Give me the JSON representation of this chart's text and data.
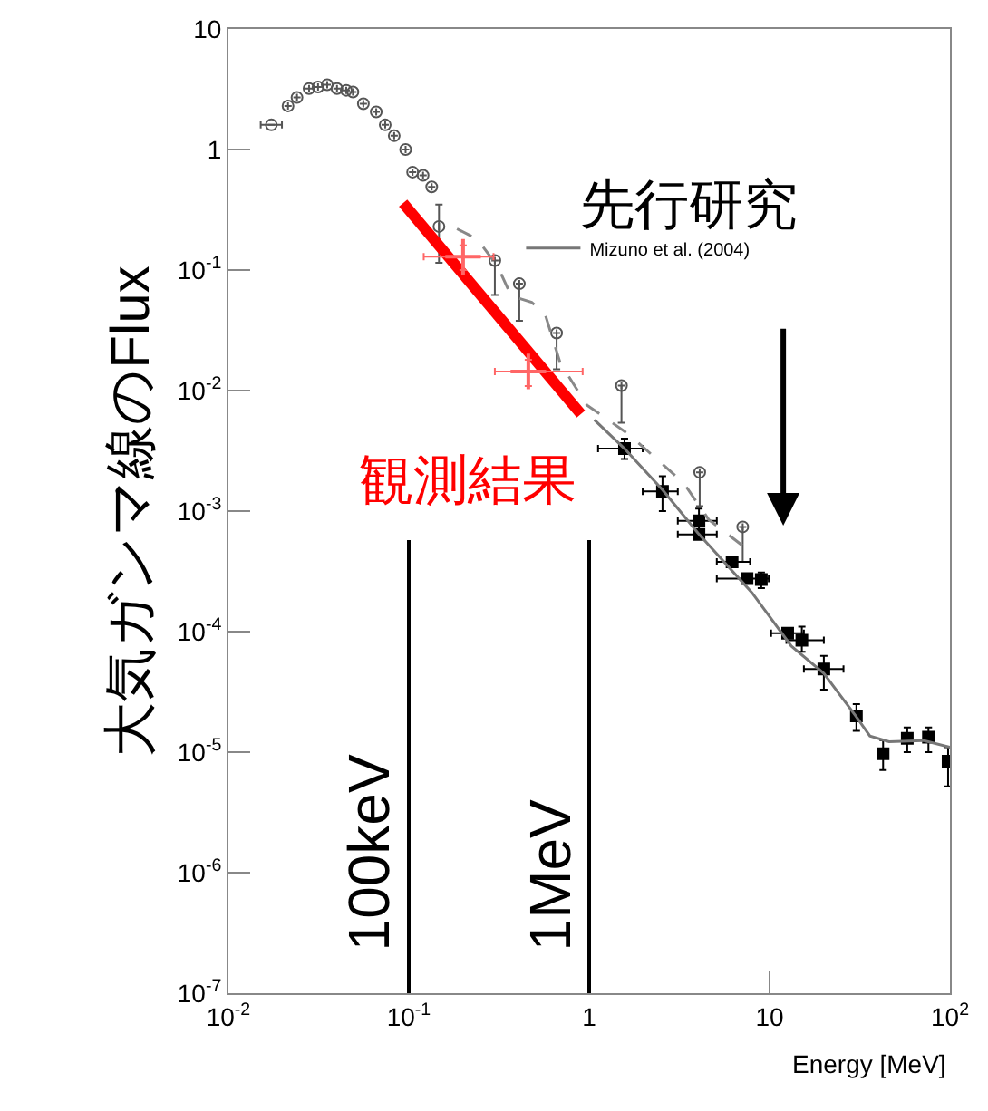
{
  "chart_data": {
    "type": "scatter",
    "xlabel": "Energy [MeV]",
    "ylabel": "大気ガンマ線のFlux",
    "log": "xy",
    "legend": "top right",
    "xlim": [
      0.01,
      100
    ],
    "ylim": [
      1e-07,
      10
    ],
    "xticks": [
      {
        "value": 0.01,
        "label": "10$^{-2}$"
      },
      {
        "value": 0.1,
        "label": "10$^{-1}$"
      },
      1,
      10,
      {
        "value": 100,
        "label": "10$^{2}$"
      }
    ],
    "yticks": [
      {
        "value": 1e-07,
        "label": "10$^{-7}$"
      },
      {
        "value": 1e-06,
        "label": "10$^{-6}$"
      },
      {
        "value": 1e-05,
        "label": "10$^{-5}$"
      },
      {
        "value": 0.0001,
        "label": "10$^{-4}$"
      },
      {
        "value": 0.001,
        "label": "10$^{-3}$"
      },
      {
        "value": 0.01,
        "label": "10$^{-2}$"
      },
      {
        "value": 0.1,
        "label": "10$^{-1}$"
      },
      1,
      10
    ],
    "annotations": [
      "先行研究"
    ],
    "ref_lines": [
      {
        "axis": "x",
        "value": 0.1,
        "label": "100keV",
        "color": "#000000"
      },
      {
        "axis": "x",
        "value": 1,
        "label": "1MeV",
        "color": "#000000"
      }
    ],
    "series": [
      {
        "marker": "circle",
        "color": "#555555",
        "x": [
          0.0173,
          0.0214,
          0.024,
          0.028,
          0.0314,
          0.0353,
          0.04,
          0.045,
          0.049,
          0.056,
          0.066,
          0.074,
          0.083,
          0.096,
          0.105,
          0.12,
          0.134,
          0.147,
          0.3,
          0.41,
          0.66,
          1.51,
          4.1,
          7.1
        ],
        "values": [
          1.6,
          2.3,
          2.7,
          3.2,
          3.3,
          3.45,
          3.2,
          3.1,
          3.0,
          2.4,
          2.05,
          1.6,
          1.3,
          1.0,
          0.65,
          0.61,
          0.49,
          0.23,
          0.12,
          0.077,
          0.03,
          0.011,
          0.0021,
          0.00074
        ],
        "errors": [
          null,
          null,
          null,
          null,
          null,
          null,
          null,
          null,
          null,
          null,
          null,
          null,
          null,
          null,
          null,
          null,
          null,
          [
            0.115,
            0.35
          ],
          [
            0.062,
            0.12
          ],
          [
            0.038,
            0.077
          ],
          [
            0.015,
            0.03
          ],
          [
            0.0054,
            0.011
          ],
          [
            0.0011,
            0.0021
          ],
          [
            0.00038,
            0.00074
          ]
        ],
        "xerrors": [
          [
            0.0151,
            0.0198
          ],
          null,
          null,
          null,
          null,
          null,
          null,
          null,
          null,
          null,
          null,
          null,
          null,
          null,
          null,
          null,
          null,
          null,
          null,
          null,
          null,
          null,
          null,
          null
        ]
      },
      {
        "marker": "square",
        "color": "#000000",
        "x": [
          1.57,
          2.55,
          4.06,
          4.06,
          6.2,
          7.5,
          9.0,
          12.6,
          15.1,
          20,
          30.3,
          42.6,
          58,
          76,
          97.7
        ],
        "values": [
          0.0033,
          0.00146,
          0.00083,
          0.00064,
          0.00038,
          0.000275,
          0.00027,
          9.7e-05,
          8.5e-05,
          4.9e-05,
          2e-05,
          9.7e-06,
          1.3e-05,
          1.33e-05,
          8.4e-06
        ],
        "errors": [
          [
            0.0027,
            0.004
          ],
          [
            0.001,
            0.00195
          ],
          [
            0.00065,
            0.00105
          ],
          null,
          null,
          null,
          [
            0.00023,
            0.00031
          ],
          null,
          [
            6.8e-05,
            0.00011
          ],
          [
            3.3e-05,
            6.3e-05
          ],
          [
            1.5e-05,
            2.5e-05
          ],
          [
            7.1e-06,
            1.26e-05
          ],
          [
            1e-05,
            1.6e-05
          ],
          [
            1e-05,
            1.6e-05
          ],
          [
            5.2e-06,
            1.1e-05
          ]
        ],
        "xerrors": [
          [
            1.12,
            1.98
          ],
          [
            1.98,
            3.1
          ],
          [
            3.1,
            5.1
          ],
          [
            3.1,
            5.1
          ],
          [
            5.1,
            7.8
          ],
          [
            5.1,
            9.9
          ],
          null,
          [
            10.2,
            15.5
          ],
          [
            12.4,
            20
          ],
          [
            15.5,
            25.7
          ],
          null,
          null,
          null,
          null,
          null
        ]
      },
      {
        "type": "line",
        "name": "Mizuno et al. (2004)",
        "marker": "none",
        "line_style": "solid",
        "color": "#777777",
        "x": [
          1.07,
          1.57,
          2.55,
          4.0,
          8.0,
          13.2,
          20,
          30,
          36,
          46,
          71,
          100
        ],
        "values": [
          0.0057,
          0.0033,
          0.0015,
          0.00066,
          0.00021,
          7.6e-05,
          4.5e-05,
          2e-05,
          1.36e-05,
          1.22e-05,
          1.25e-05,
          1.1e-05
        ]
      },
      {
        "type": "line",
        "marker": "none",
        "line_style": "dashed",
        "color": "#888888",
        "x": [
          0.185,
          0.24,
          0.31,
          0.37,
          0.48,
          0.57,
          0.69,
          0.97,
          1.67,
          3.35,
          4.6,
          8
        ],
        "values": [
          0.22,
          0.18,
          0.108,
          0.061,
          0.054,
          0.043,
          0.017,
          0.0076,
          0.0043,
          0.0017,
          0.00085,
          0.00045
        ]
      },
      {
        "type": "line",
        "name": "観測結果",
        "marker": "none",
        "line_style": "solid",
        "color": "#ff0000",
        "x": [
          0.093,
          0.9
        ],
        "values": [
          0.36,
          0.0064
        ]
      },
      {
        "marker": "cross",
        "color": "#ff6666",
        "x": [
          0.2,
          0.46
        ],
        "values": [
          0.129,
          0.0144
        ],
        "errors": [
          [
            0.1,
            0.16
          ],
          [
            0.0109,
            0.018
          ]
        ],
        "xerrors": [
          [
            0.121,
            0.295
          ],
          [
            0.3,
            0.92
          ]
        ]
      }
    ]
  }
}
